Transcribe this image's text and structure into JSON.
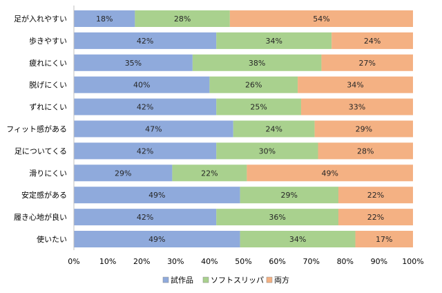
{
  "chart_data": {
    "type": "bar",
    "orientation": "horizontal",
    "stacked": "percent",
    "categories": [
      "足が入れやすい",
      "歩きやすい",
      "疲れにくい",
      "脱げにくい",
      "ずれにくい",
      "フィット感がある",
      "足についてくる",
      "滑りにくい",
      "安定感がある",
      "履き心地が良い",
      "使いたい"
    ],
    "series": [
      {
        "name": "試作品",
        "color": "#8faadc",
        "values": [
          18,
          42,
          35,
          40,
          42,
          47,
          42,
          29,
          49,
          42,
          49
        ]
      },
      {
        "name": "ソフトスリッパ",
        "color": "#a9d18e",
        "values": [
          28,
          34,
          38,
          26,
          25,
          24,
          30,
          22,
          29,
          36,
          34
        ]
      },
      {
        "name": "両方",
        "color": "#f4b183",
        "values": [
          54,
          24,
          27,
          34,
          33,
          29,
          28,
          49,
          22,
          22,
          17
        ]
      }
    ],
    "xlim": [
      0,
      100
    ],
    "xticks": [
      "0%",
      "10%",
      "20%",
      "30%",
      "40%",
      "50%",
      "60%",
      "70%",
      "80%",
      "90%",
      "100%"
    ],
    "legend_position": "bottom",
    "grid": false
  }
}
